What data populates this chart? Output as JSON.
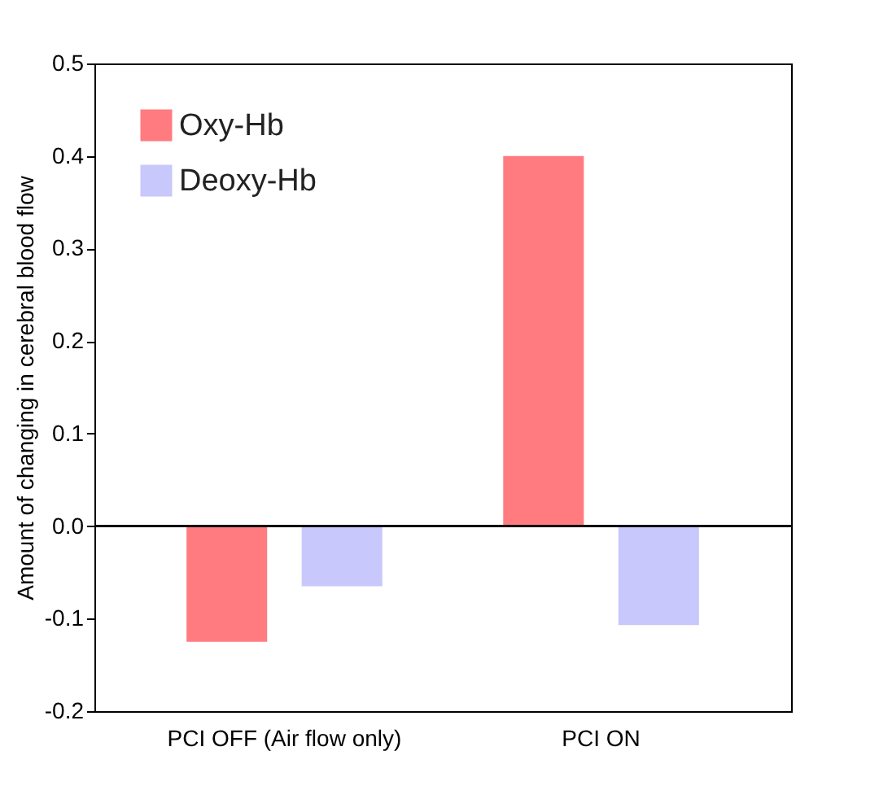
{
  "chart_data": {
    "type": "bar",
    "ylabel": "Amount of changing in cerebral blood flow",
    "categories": [
      "PCI OFF (Air flow only)",
      "PCI ON"
    ],
    "series": [
      {
        "name": "Oxy-Hb",
        "color": "#ff7b80",
        "values": [
          -0.125,
          0.4
        ]
      },
      {
        "name": "Deoxy-Hb",
        "color": "#c8c8fc",
        "values": [
          -0.065,
          -0.107
        ]
      }
    ],
    "ylim": [
      -0.2,
      0.5
    ],
    "yticks": [
      -0.2,
      -0.1,
      {
        "value": 0,
        "label": "0.0"
      },
      0.1,
      0.2,
      0.3,
      0.4,
      0.5
    ],
    "ref_lines": [
      {
        "axis": "y",
        "value": 0
      }
    ],
    "grid": false,
    "legend": "top left"
  }
}
